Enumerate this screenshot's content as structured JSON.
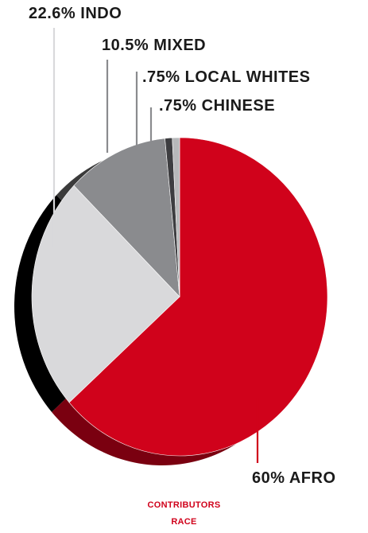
{
  "chart_data": {
    "type": "pie",
    "slices": [
      {
        "label": "60% AFRO",
        "value": 60,
        "color": "#d0021b",
        "side_color": "#7a0010"
      },
      {
        "label": "22.6% INDO",
        "value": 22.6,
        "color": "#d9d9db",
        "side_color": "#000000"
      },
      {
        "label": "10.5% MIXED",
        "value": 10.5,
        "color": "#8a8b8e",
        "side_color": "#3b3b3b"
      },
      {
        "label": ".75% LOCAL WHITES",
        "value": 0.75,
        "color": "#3d3d40",
        "side_color": "#1a1a1a"
      },
      {
        "label": ".75% CHINESE",
        "value": 0.75,
        "color": "#b7b8ba",
        "side_color": "#555555"
      }
    ]
  },
  "caption": {
    "line1": "CONTRIBUTORS",
    "line2": "RACE"
  }
}
